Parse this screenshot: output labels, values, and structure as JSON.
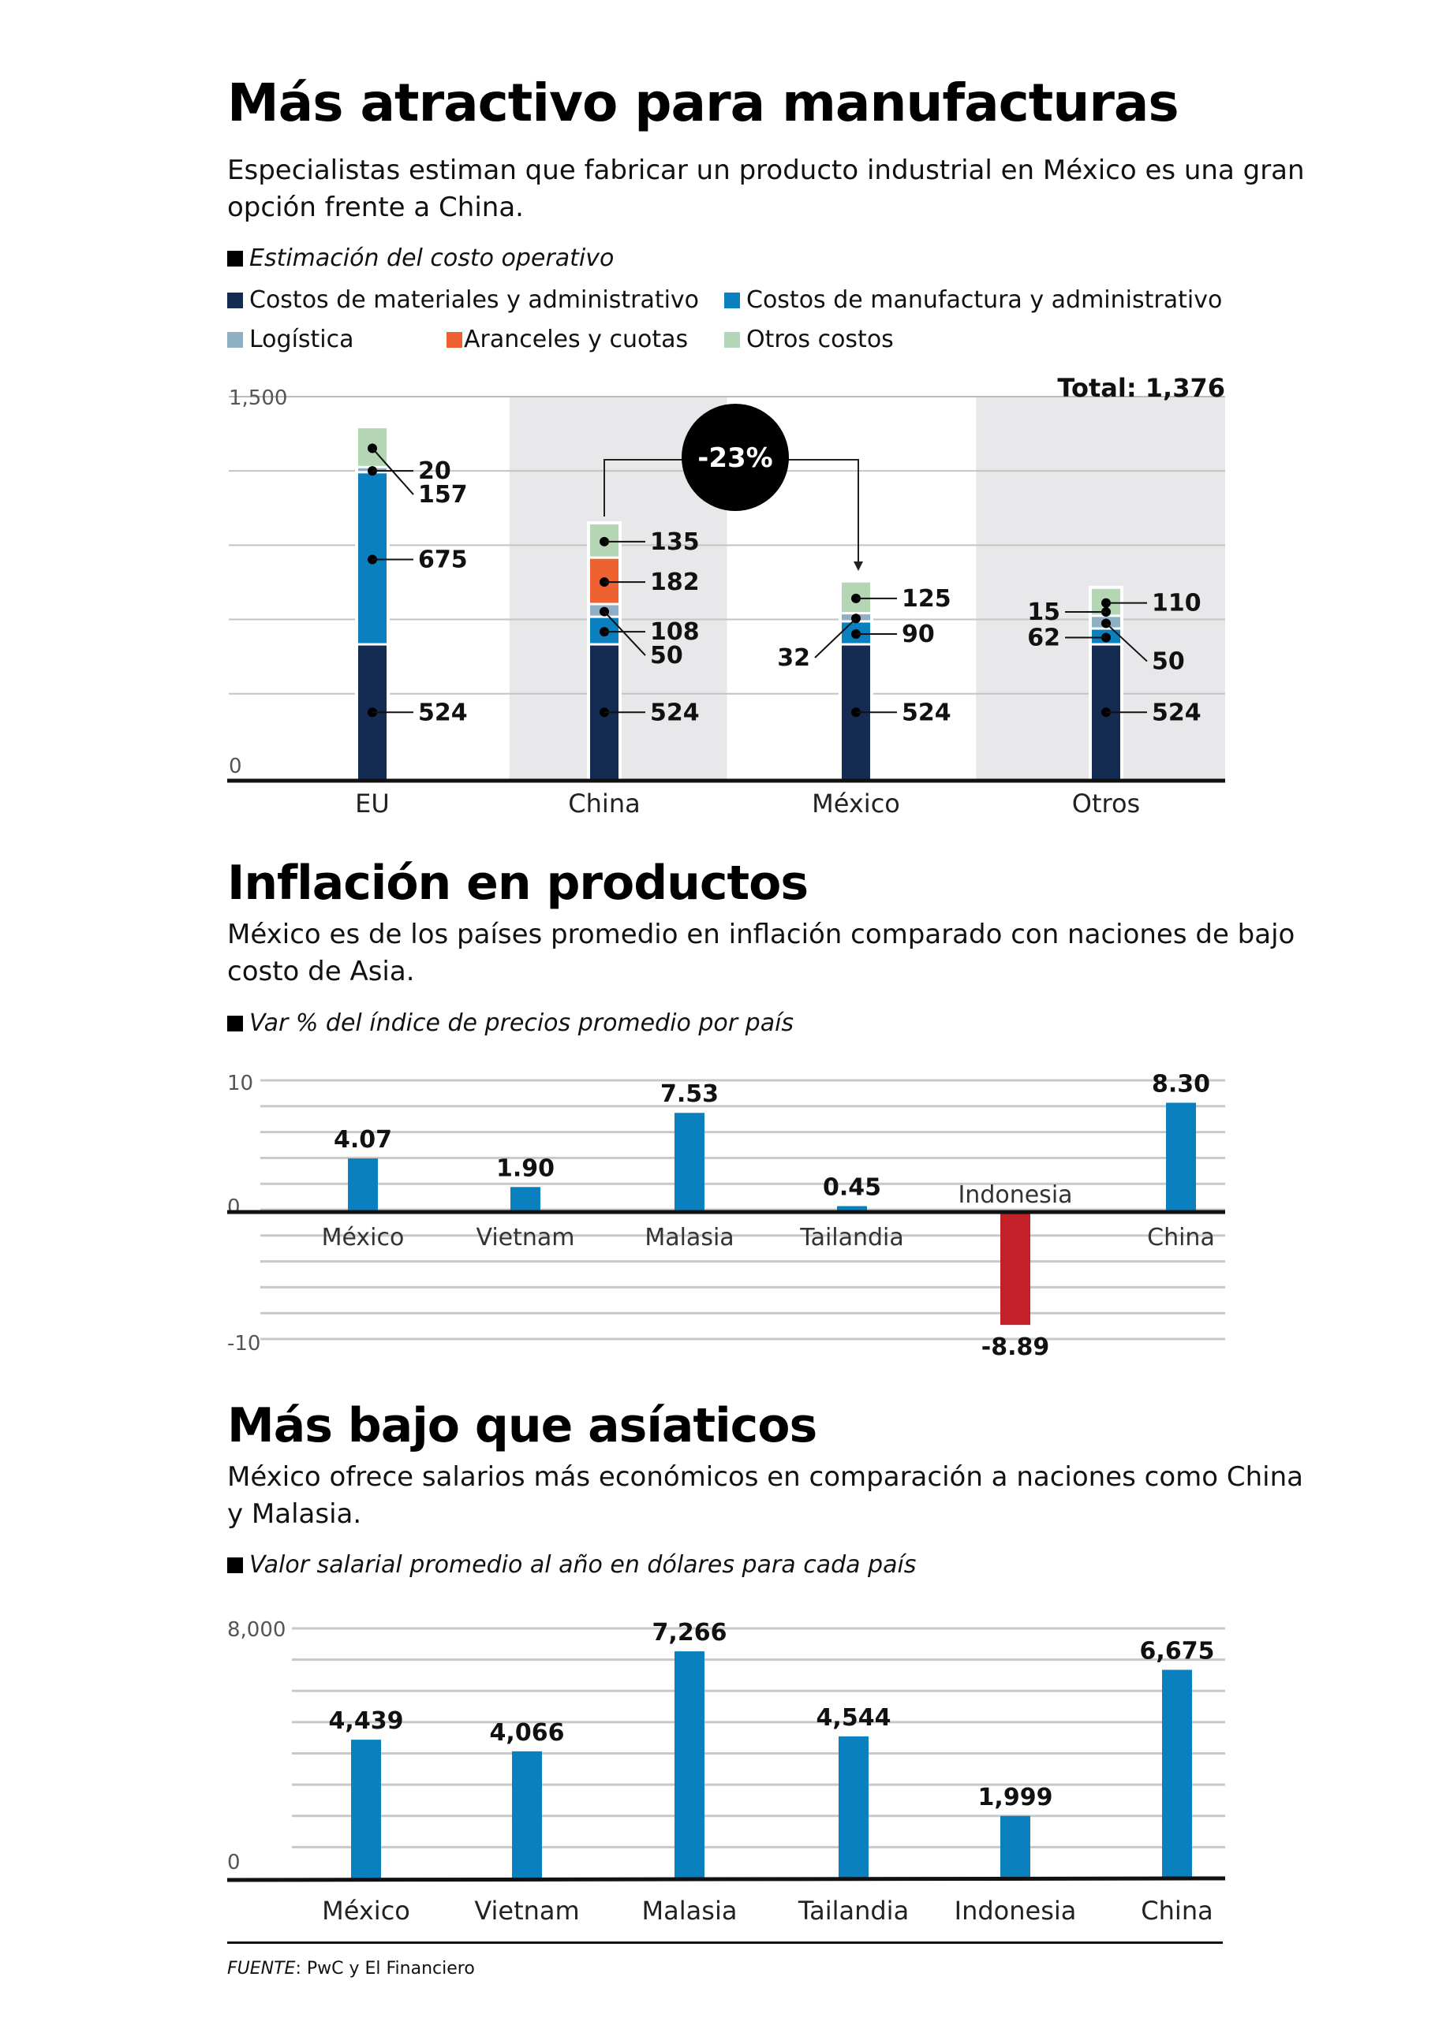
{
  "section1": {
    "title": "Más atractivo para manufacturas",
    "subtitle": "Especialistas estiman que fabricar un producto industrial en México es una gran opción frente a China.",
    "note": "Estimación del costo operativo",
    "legend": [
      {
        "label": "Costos de materiales y administrativo",
        "color": "#142c52"
      },
      {
        "label": "Costos de manufactura y administrativo",
        "color": "#0a80bf"
      },
      {
        "label": "Logística",
        "color": "#8fafc4"
      },
      {
        "label": "Aranceles y cuotas",
        "color": "#ee6130"
      },
      {
        "label": "Otros costos",
        "color": "#b5d6b4"
      }
    ],
    "total_label": "Total: 1,376",
    "callout": "-23%"
  },
  "section2": {
    "title": "Inflación en productos",
    "subtitle": "México es de los países promedio en inflación comparado con naciones de bajo costo de Asia.",
    "note": "Var % del índice de precios promedio por país"
  },
  "section3": {
    "title": "Más bajo que asíaticos",
    "subtitle": "México ofrece salarios más económicos en comparación a naciones como China y Malasia.",
    "note": "Valor salarial promedio al año en dólares para cada país"
  },
  "footer": {
    "source_label": "FUENTE",
    "source_text": ": PwC y El Financiero"
  },
  "chart_data": [
    {
      "type": "bar",
      "stacked": true,
      "title": "Estimación del costo operativo",
      "categories": [
        "EU",
        "China",
        "México",
        "Otros"
      ],
      "series": [
        {
          "name": "Costos de materiales y administrativo",
          "color": "#142c52",
          "values": [
            524,
            524,
            524,
            524
          ]
        },
        {
          "name": "Costos de manufactura y administrativo",
          "color": "#0a80bf",
          "values": [
            675,
            108,
            90,
            62
          ]
        },
        {
          "name": "Logística",
          "color": "#8fafc4",
          "values": [
            20,
            50,
            32,
            50
          ]
        },
        {
          "name": "Aranceles y cuotas",
          "color": "#ee6130",
          "values": [
            0,
            182,
            0,
            0
          ]
        },
        {
          "name": "Otros costos",
          "color": "#b5d6b4",
          "values": [
            157,
            135,
            125,
            110
          ]
        }
      ],
      "extra_labels": {
        "Otros": [
          {
            "value": 15,
            "side": "left"
          }
        ]
      },
      "yticks": [
        "0",
        "1,500"
      ],
      "ylim": [
        0,
        1500
      ],
      "grid": true,
      "annotations": [
        "Total: 1,376",
        "-23%"
      ]
    },
    {
      "type": "bar",
      "title": "Var % del índice de precios promedio por país",
      "categories": [
        "México",
        "Vietnam",
        "Malasia",
        "Tailandia",
        "Indonesia",
        "China"
      ],
      "values": [
        4.07,
        1.9,
        7.53,
        0.45,
        -8.89,
        8.3
      ],
      "labels": [
        "4.07",
        "1.90",
        "7.53",
        "0.45",
        "-8.89",
        "8.30"
      ],
      "colors": {
        "positive": "#0a80bf",
        "negative": "#c4202a"
      },
      "yticks": [
        "10",
        "0",
        "-10"
      ],
      "ylim": [
        -10,
        10
      ],
      "grid": true
    },
    {
      "type": "bar",
      "title": "Valor salarial promedio al año en dólares para cada país",
      "categories": [
        "México",
        "Vietnam",
        "Malasia",
        "Tailandia",
        "Indonesia",
        "China"
      ],
      "values": [
        4439,
        4066,
        7266,
        4544,
        1999,
        6675
      ],
      "labels": [
        "4,439",
        "4,066",
        "7,266",
        "4,544",
        "1,999",
        "6,675"
      ],
      "color": "#0a80bf",
      "yticks": [
        "8,000",
        "0"
      ],
      "ylim": [
        0,
        8000
      ],
      "grid": true
    }
  ]
}
